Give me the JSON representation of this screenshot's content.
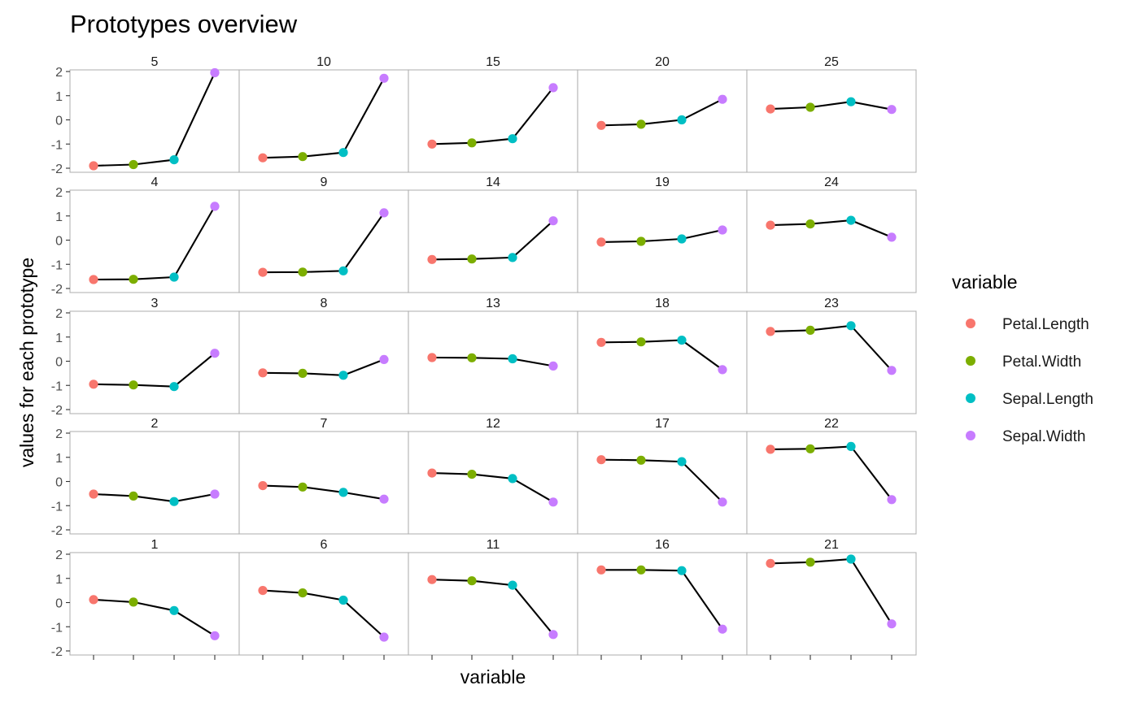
{
  "chart_data": {
    "type": "line",
    "title": "Prototypes overview",
    "xlabel": "variable",
    "ylabel": "values for each prototype",
    "ylim": [
      -2,
      2
    ],
    "y_ticks": [
      -2,
      -1,
      0,
      1,
      2
    ],
    "y_tick_labels": [
      "-2",
      "-1",
      "0",
      "1",
      "2"
    ],
    "grid": false,
    "legend": {
      "title": "variable",
      "position": "right",
      "items": [
        {
          "label": "Petal.Length",
          "color": "#F8766D"
        },
        {
          "label": "Petal.Width",
          "color": "#7CAE00"
        },
        {
          "label": "Sepal.Length",
          "color": "#00BFC4"
        },
        {
          "label": "Sepal.Width",
          "color": "#C77CFF"
        }
      ]
    },
    "categories": [
      "Petal.Length",
      "Petal.Width",
      "Sepal.Length",
      "Sepal.Width"
    ],
    "line_color": "#000000",
    "panel_rows": [
      [
        {
          "label": "5",
          "values": [
            -1.9,
            -1.85,
            -1.65,
            1.95
          ]
        },
        {
          "label": "10",
          "values": [
            -1.57,
            -1.52,
            -1.35,
            1.72
          ]
        },
        {
          "label": "15",
          "values": [
            -1.0,
            -0.95,
            -0.78,
            1.33
          ]
        },
        {
          "label": "20",
          "values": [
            -0.23,
            -0.18,
            0.0,
            0.85
          ]
        },
        {
          "label": "25",
          "values": [
            0.45,
            0.52,
            0.75,
            0.43
          ]
        }
      ],
      [
        {
          "label": "4",
          "values": [
            -1.63,
            -1.62,
            -1.53,
            1.4
          ]
        },
        {
          "label": "9",
          "values": [
            -1.33,
            -1.32,
            -1.27,
            1.13
          ]
        },
        {
          "label": "14",
          "values": [
            -0.8,
            -0.78,
            -0.72,
            0.8
          ]
        },
        {
          "label": "19",
          "values": [
            -0.08,
            -0.05,
            0.05,
            0.42
          ]
        },
        {
          "label": "24",
          "values": [
            0.62,
            0.67,
            0.82,
            0.12
          ]
        }
      ],
      [
        {
          "label": "3",
          "values": [
            -0.95,
            -0.98,
            -1.05,
            0.33
          ]
        },
        {
          "label": "8",
          "values": [
            -0.48,
            -0.5,
            -0.58,
            0.07
          ]
        },
        {
          "label": "13",
          "values": [
            0.15,
            0.14,
            0.1,
            -0.2
          ]
        },
        {
          "label": "18",
          "values": [
            0.78,
            0.8,
            0.87,
            -0.35
          ]
        },
        {
          "label": "23",
          "values": [
            1.23,
            1.28,
            1.47,
            -0.38
          ]
        }
      ],
      [
        {
          "label": "2",
          "values": [
            -0.52,
            -0.6,
            -0.83,
            -0.52
          ]
        },
        {
          "label": "7",
          "values": [
            -0.17,
            -0.23,
            -0.45,
            -0.73
          ]
        },
        {
          "label": "12",
          "values": [
            0.35,
            0.3,
            0.12,
            -0.85
          ]
        },
        {
          "label": "17",
          "values": [
            0.9,
            0.88,
            0.82,
            -0.85
          ]
        },
        {
          "label": "22",
          "values": [
            1.33,
            1.35,
            1.45,
            -0.75
          ]
        }
      ],
      [
        {
          "label": "1",
          "values": [
            0.12,
            0.02,
            -0.33,
            -1.37
          ]
        },
        {
          "label": "6",
          "values": [
            0.5,
            0.4,
            0.1,
            -1.43
          ]
        },
        {
          "label": "11",
          "values": [
            0.95,
            0.9,
            0.72,
            -1.32
          ]
        },
        {
          "label": "16",
          "values": [
            1.35,
            1.35,
            1.32,
            -1.1
          ]
        },
        {
          "label": "21",
          "values": [
            1.62,
            1.67,
            1.8,
            -0.88
          ]
        }
      ]
    ]
  }
}
